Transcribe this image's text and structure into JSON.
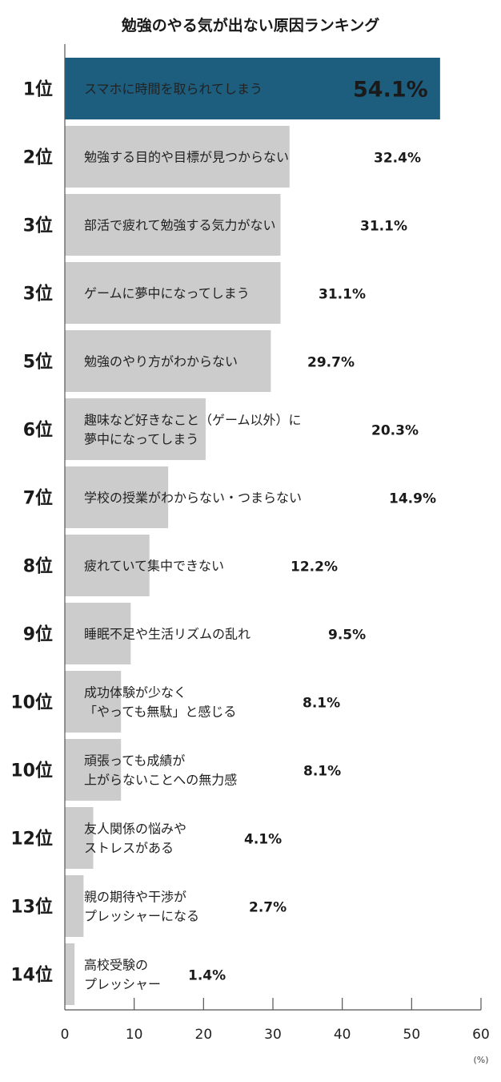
{
  "chart_data": {
    "type": "bar",
    "orientation": "horizontal",
    "title": "勉強のやる気が出ない原因ランキング",
    "xlabel": "",
    "x_unit": "(%)",
    "xlim": [
      0,
      60
    ],
    "xticks": [
      "0",
      "10",
      "20",
      "30",
      "40",
      "50",
      "60"
    ],
    "grid": false,
    "highlight_color": "#1d5d7e",
    "bar_color": "#cccccc",
    "ranks": [
      "1位",
      "2位",
      "3位",
      "3位",
      "5位",
      "6位",
      "7位",
      "8位",
      "9位",
      "10位",
      "10位",
      "12位",
      "13位",
      "14位"
    ],
    "categories": [
      [
        "スマホに時間を取られてしまう"
      ],
      [
        "勉強する目的や目標が見つからない"
      ],
      [
        "部活で疲れて勉強する気力がない"
      ],
      [
        "ゲームに夢中になってしまう"
      ],
      [
        "勉強のやり方がわからない"
      ],
      [
        "趣味など好きなこと（ゲーム以外）に",
        "夢中になってしまう"
      ],
      [
        "学校の授業がわからない・つまらない"
      ],
      [
        "疲れていて集中できない"
      ],
      [
        "睡眠不足や生活リズムの乱れ"
      ],
      [
        "成功体験が少なく",
        "「やっても無駄」と感じる"
      ],
      [
        "頑張っても成績が",
        "上がらないことへの無力感"
      ],
      [
        "友人関係の悩みや",
        "ストレスがある"
      ],
      [
        "親の期待や干渉が",
        "プレッシャーになる"
      ],
      [
        "高校受験の",
        "プレッシャー"
      ]
    ],
    "values": [
      54.1,
      32.4,
      31.1,
      31.1,
      29.7,
      20.3,
      14.9,
      12.2,
      9.5,
      8.1,
      8.1,
      4.1,
      2.7,
      1.4
    ],
    "value_labels": [
      "54.1%",
      "32.4%",
      "31.1%",
      "31.1%",
      "29.7%",
      "20.3%",
      "14.9%",
      "12.2%",
      "9.5%",
      "8.1%",
      "8.1%",
      "4.1%",
      "2.7%",
      "1.4%"
    ]
  }
}
